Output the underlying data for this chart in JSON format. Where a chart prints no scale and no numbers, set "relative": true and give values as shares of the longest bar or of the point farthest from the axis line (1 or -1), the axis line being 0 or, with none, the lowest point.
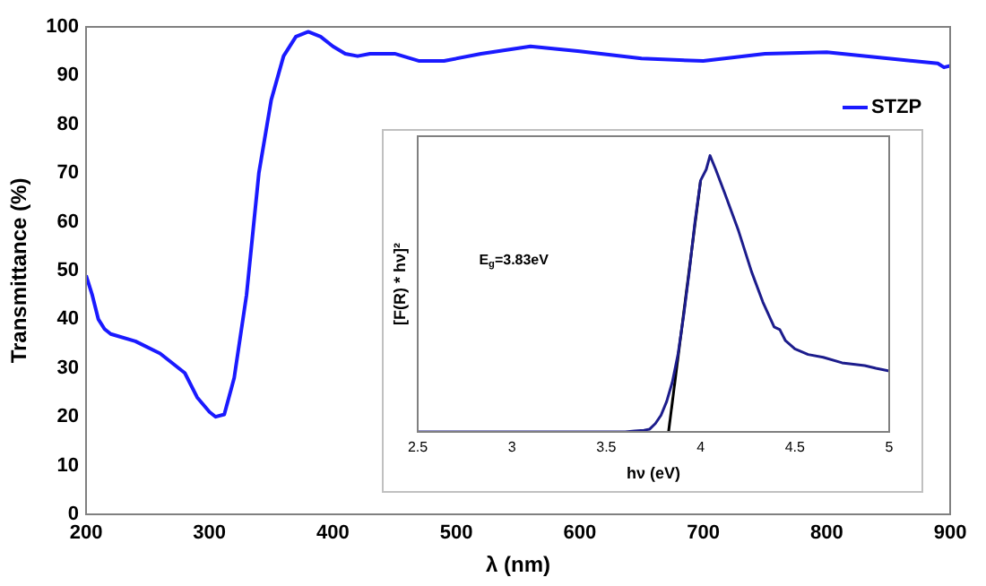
{
  "chart_data": [
    {
      "type": "line",
      "xlabel": "λ (nm)",
      "ylabel": "Transmittance (%)",
      "legend": "top right",
      "marker": "none",
      "grid": false,
      "xlim": [
        200,
        900
      ],
      "xticks": [
        200,
        300,
        400,
        500,
        600,
        700,
        800,
        900
      ],
      "ylim": [
        0,
        100
      ],
      "yticks": [
        0,
        10,
        20,
        30,
        40,
        50,
        60,
        70,
        80,
        90,
        100
      ],
      "x": [
        200,
        205,
        210,
        215,
        220,
        240,
        260,
        280,
        290,
        300,
        305,
        312,
        320,
        330,
        340,
        350,
        360,
        370,
        380,
        390,
        400,
        410,
        420,
        430,
        450,
        470,
        490,
        520,
        560,
        600,
        650,
        700,
        750,
        800,
        850,
        890,
        895,
        900
      ],
      "series": [
        {
          "name": "STZP",
          "color": "#1a1aff",
          "values": [
            49,
            45,
            40,
            38,
            37,
            35.5,
            33,
            29,
            24,
            21,
            20,
            20.5,
            28,
            45,
            70,
            85,
            94,
            98,
            99,
            98,
            96,
            94.5,
            94,
            94.5,
            94.5,
            93,
            93,
            94.5,
            96,
            95,
            93.5,
            93,
            94.5,
            94.8,
            93.5,
            92.5,
            91.7,
            92
          ]
        }
      ]
    },
    {
      "type": "line",
      "xlabel": "hν (eV)",
      "ylabel": "[F(R) * hν]²",
      "relative": true,
      "tick_labels": "x",
      "marker": "none",
      "grid": false,
      "xlim": [
        2.5,
        5
      ],
      "xticks": [
        2.5,
        3,
        3.5,
        4,
        4.5,
        5
      ],
      "annotations": [
        "E$_{g}$=3.83eV"
      ],
      "series": [
        {
          "color": "#1c1c8c",
          "x": [
            2.5,
            3,
            3.5,
            3.6,
            3.65,
            3.7,
            3.73,
            3.76,
            3.79,
            3.82,
            3.85,
            3.88,
            3.91,
            3.94,
            3.97,
            4.0,
            4.03,
            4.05,
            4.08,
            4.13,
            4.2,
            4.27,
            4.33,
            4.39,
            4.42,
            4.45,
            4.5,
            4.57,
            4.65,
            4.75,
            4.87,
            4.93,
            5.0
          ],
          "values": [
            0,
            0,
            0,
            0,
            0.003,
            0.006,
            0.01,
            0.03,
            0.06,
            0.11,
            0.18,
            0.28,
            0.42,
            0.58,
            0.76,
            0.91,
            0.95,
            1,
            0.95,
            0.86,
            0.73,
            0.58,
            0.47,
            0.38,
            0.37,
            0.33,
            0.3,
            0.28,
            0.27,
            0.25,
            0.24,
            0.23,
            0.22
          ]
        },
        {
          "color": "#000000",
          "x": [
            3.83,
            4.0
          ],
          "values": [
            0,
            0.91
          ]
        }
      ]
    }
  ]
}
